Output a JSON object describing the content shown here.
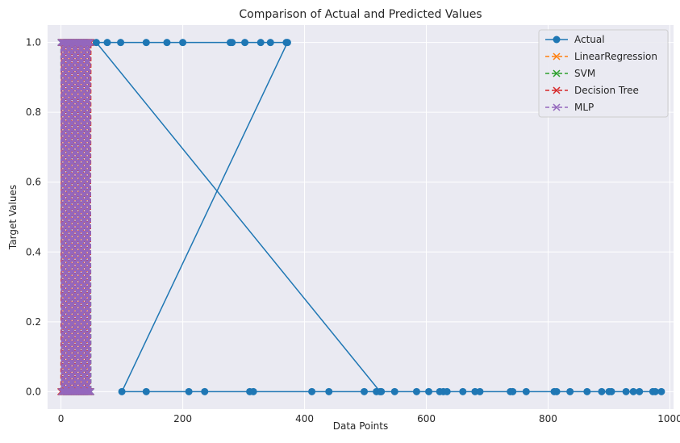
{
  "chart_data": {
    "type": "line",
    "title": "Comparison of Actual and Predicted Values",
    "xlabel": "Data Points",
    "ylabel": "Target Values",
    "xlim": [
      -22,
      1006
    ],
    "ylim": [
      -0.05,
      1.05
    ],
    "xticks": [
      0,
      200,
      400,
      600,
      800,
      1000
    ],
    "xtick_labels": [
      "0",
      "200",
      "400",
      "600",
      "800",
      "1000"
    ],
    "yticks": [
      0.0,
      0.2,
      0.4,
      0.6,
      0.8,
      1.0
    ],
    "ytick_labels": [
      "0.0",
      "0.2",
      "0.4",
      "0.6",
      "0.8",
      "1.0"
    ],
    "grid": true,
    "legend_position": "top-right",
    "series": [
      {
        "name": "Actual",
        "color": "#1f77b4",
        "linestyle": "solid",
        "marker": "circle",
        "x": [
          524,
          58,
          76,
          98,
          140,
          174,
          200,
          278,
          281,
          302,
          328,
          344,
          370,
          372,
          100,
          140,
          210,
          236,
          310,
          316,
          412,
          440,
          498,
          518,
          526,
          548,
          584,
          604,
          622,
          628,
          634,
          660,
          680,
          688,
          738,
          742,
          764,
          810,
          814,
          836,
          864,
          888,
          900,
          904,
          928,
          940,
          950,
          972,
          976,
          986
        ],
        "y": [
          0,
          1,
          1,
          1,
          1,
          1,
          1,
          1,
          1,
          1,
          1,
          1,
          1,
          1,
          0,
          0,
          0,
          0,
          0,
          0,
          0,
          0,
          0,
          0,
          0,
          0,
          0,
          0,
          0,
          0,
          0,
          0,
          0,
          0,
          0,
          0,
          0,
          0,
          0,
          0,
          0,
          0,
          0,
          0,
          0,
          0,
          0,
          0,
          0,
          0
        ]
      },
      {
        "name": "LinearRegression",
        "color": "#ff7f0e",
        "linestyle": "dashed",
        "marker": "x",
        "x_range": [
          0,
          49
        ],
        "y_values": [
          0,
          1
        ]
      },
      {
        "name": "SVM",
        "color": "#2ca02c",
        "linestyle": "dashed",
        "marker": "x",
        "x_range": [
          0,
          49
        ],
        "y_values": [
          0,
          1
        ]
      },
      {
        "name": "Decision Tree",
        "color": "#d62728",
        "linestyle": "dashed",
        "marker": "x",
        "x_range": [
          0,
          49
        ],
        "y_values": [
          0,
          1
        ]
      },
      {
        "name": "MLP",
        "color": "#9467bd",
        "linestyle": "dashed",
        "marker": "x",
        "x_range": [
          0,
          49
        ],
        "y_values": [
          0,
          1
        ]
      }
    ]
  }
}
